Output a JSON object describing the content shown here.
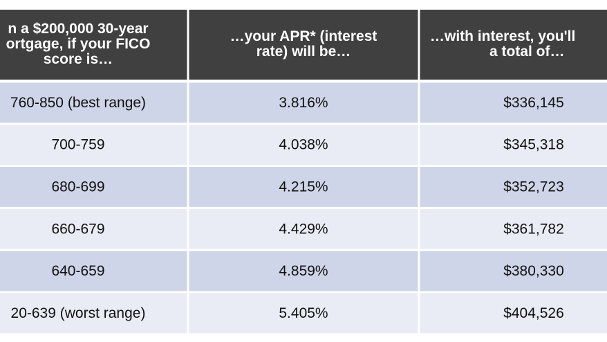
{
  "table": {
    "header": [
      [
        "n a $200,000 30-year",
        "ortgage, if your FICO",
        "score is…"
      ],
      [
        "…your APR* (interest",
        "rate) will be…"
      ],
      [
        "…with interest, you'll",
        "a total of…"
      ]
    ],
    "rows": [
      [
        "760-850 (best range)",
        "3.816%",
        "$336,145"
      ],
      [
        "700-759",
        "4.038%",
        "$345,318"
      ],
      [
        "680-699",
        "4.215%",
        "$352,723"
      ],
      [
        "660-679",
        "4.429%",
        "$361,782"
      ],
      [
        "640-659",
        "4.859%",
        "$380,330"
      ],
      [
        "20-639 (worst range)",
        "5.405%",
        "$404,526"
      ]
    ]
  }
}
